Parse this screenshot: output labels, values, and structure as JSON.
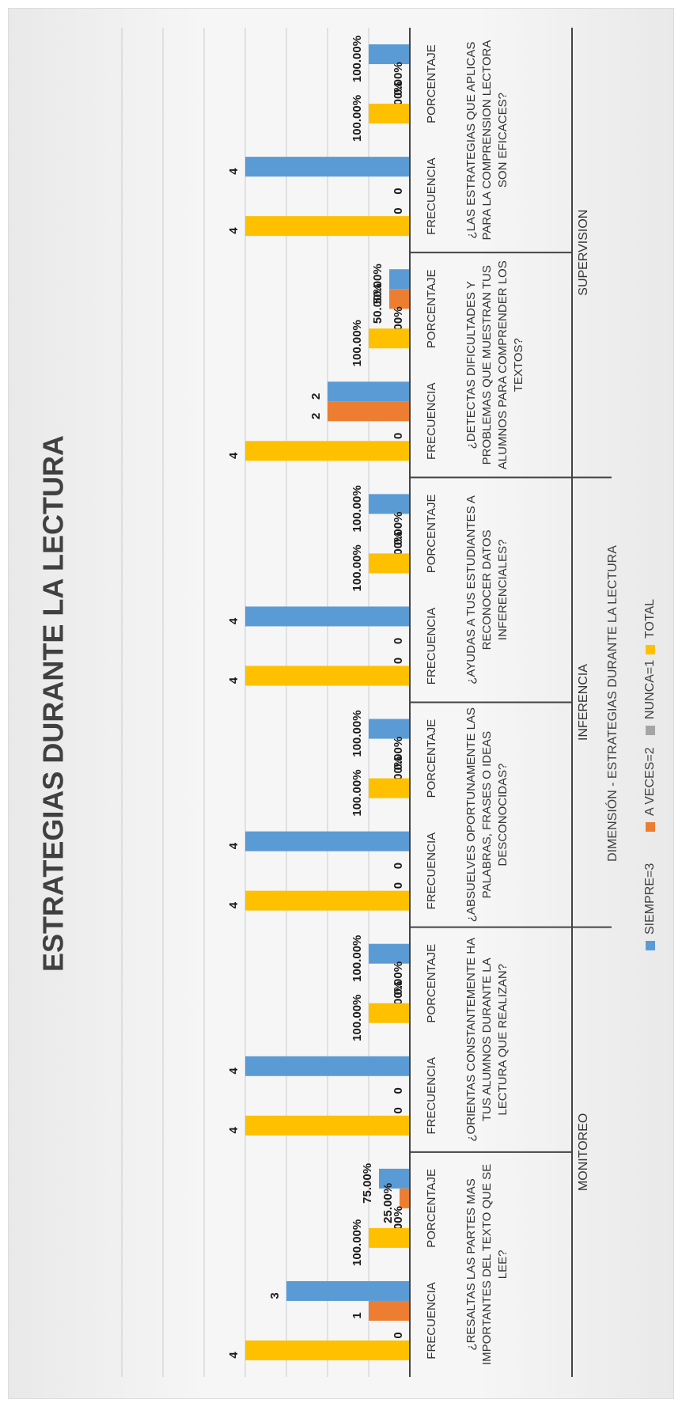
{
  "chart_data": {
    "type": "bar",
    "orientation": "horizontal",
    "title": "ESTRATEGIAS DURANTE LA LECTURA",
    "axis_title": "DIMENSIÓN - ESTRATEGIAS DURANTE LA LECTURA",
    "groups": [
      "MONITOREO",
      "INFERENCIA",
      "SUPERVISION"
    ],
    "questions": [
      {
        "label": "¿RESALTAS LAS PARTES MAS IMPORTANTES DEL TEXTO QUE SE LEE?",
        "group": "MONITOREO"
      },
      {
        "label": "¿ORIENTAS CONSTANTEMENTE HA TUS ALUMNOS DURANTE LA LECTURA QUE REALIZAN?",
        "group": "MONITOREO"
      },
      {
        "label": "¿ABSUELVES OPORTUNAMENTE LAS PALABRAS, FRASES O IDEAS DESCONOCIDAS?",
        "group": "INFERENCIA"
      },
      {
        "label": "¿AYUDAS A TUS ESTUDIANTES A RECONOCER DATOS INFERENCIALES?",
        "group": "INFERENCIA"
      },
      {
        "label": "¿DETECTAS DIFICULTADES Y PROBLEMAS QUE MUESTRAN TUS ALUMNOS PARA COMPRENDER LOS TEXTOS?",
        "group": "SUPERVISION"
      },
      {
        "label": "¿LAS ESTRATEGIAS QUE APLICAS PARA LA COMPRENSION LECTORA SON EFICACES?",
        "group": "SUPERVISION"
      }
    ],
    "measures": [
      "FRECUENCIA",
      "PORCENTAJE"
    ],
    "series": [
      {
        "name": "SIEMPRE=3",
        "color": "#5B9BD5"
      },
      {
        "name": "A VECES=2",
        "color": "#ED7D31"
      },
      {
        "name": "NUNCA=1",
        "color": "#A5A5A5"
      },
      {
        "name": "TOTAL",
        "color": "#FFC000"
      }
    ],
    "frecuencia": [
      {
        "SIEMPRE=3": 3,
        "A VECES=2": 1,
        "NUNCA=1": 0,
        "TOTAL": 4
      },
      {
        "SIEMPRE=3": 4,
        "A VECES=2": 0,
        "NUNCA=1": 0,
        "TOTAL": 4
      },
      {
        "SIEMPRE=3": 4,
        "A VECES=2": 0,
        "NUNCA=1": 0,
        "TOTAL": 4
      },
      {
        "SIEMPRE=3": 4,
        "A VECES=2": 0,
        "NUNCA=1": 0,
        "TOTAL": 4
      },
      {
        "SIEMPRE=3": 2,
        "A VECES=2": 2,
        "NUNCA=1": 0,
        "TOTAL": 4
      },
      {
        "SIEMPRE=3": 4,
        "A VECES=2": 0,
        "NUNCA=1": 0,
        "TOTAL": 4
      }
    ],
    "porcentaje": [
      {
        "SIEMPRE=3": 0.75,
        "A VECES=2": 0.25,
        "NUNCA=1": 0,
        "TOTAL": 1
      },
      {
        "SIEMPRE=3": 1,
        "A VECES=2": 0,
        "NUNCA=1": 0,
        "TOTAL": 1
      },
      {
        "SIEMPRE=3": 1,
        "A VECES=2": 0,
        "NUNCA=1": 0,
        "TOTAL": 1
      },
      {
        "SIEMPRE=3": 1,
        "A VECES=2": 0,
        "NUNCA=1": 0,
        "TOTAL": 1
      },
      {
        "SIEMPRE=3": 0.5,
        "A VECES=2": 0.5,
        "NUNCA=1": 0,
        "TOTAL": 1
      },
      {
        "SIEMPRE=3": 1,
        "A VECES=2": 0,
        "NUNCA=1": 0,
        "TOTAL": 1
      }
    ],
    "frecuencia_labels": [
      {
        "SIEMPRE=3": "3",
        "A VECES=2": "1",
        "NUNCA=1": "0",
        "TOTAL": "4"
      },
      {
        "SIEMPRE=3": "4",
        "A VECES=2": "0",
        "NUNCA=1": "0",
        "TOTAL": "4"
      },
      {
        "SIEMPRE=3": "4",
        "A VECES=2": "0",
        "NUNCA=1": "0",
        "TOTAL": "4"
      },
      {
        "SIEMPRE=3": "4",
        "A VECES=2": "0",
        "NUNCA=1": "0",
        "TOTAL": "4"
      },
      {
        "SIEMPRE=3": "2",
        "A VECES=2": "2",
        "NUNCA=1": "0",
        "TOTAL": "4"
      },
      {
        "SIEMPRE=3": "4",
        "A VECES=2": "0",
        "NUNCA=1": "0",
        "TOTAL": "4"
      }
    ],
    "porcentaje_labels": [
      {
        "SIEMPRE=3": "75.00%",
        "A VECES=2": "25.00%",
        "NUNCA=1": "0.00%",
        "TOTAL": "100.00%"
      },
      {
        "SIEMPRE=3": "100.00%",
        "A VECES=2": "0.00%",
        "NUNCA=1": "0.00%",
        "TOTAL": "100.00%"
      },
      {
        "SIEMPRE=3": "100.00%",
        "A VECES=2": "0.00%",
        "NUNCA=1": "0.00%",
        "TOTAL": "100.00%"
      },
      {
        "SIEMPRE=3": "100.00%",
        "A VECES=2": "0.00%",
        "NUNCA=1": "0.00%",
        "TOTAL": "100.00%"
      },
      {
        "SIEMPRE=3": "50.00%",
        "A VECES=2": "50.00%",
        "NUNCA=1": "0.00%",
        "TOTAL": "100.00%"
      },
      {
        "SIEMPRE=3": "100.00%",
        "A VECES=2": "0.00%",
        "NUNCA=1": "0.00%",
        "TOTAL": "100.00%"
      }
    ],
    "value_axis_range": [
      0,
      7
    ],
    "grid": true,
    "legend_position": "bottom"
  }
}
